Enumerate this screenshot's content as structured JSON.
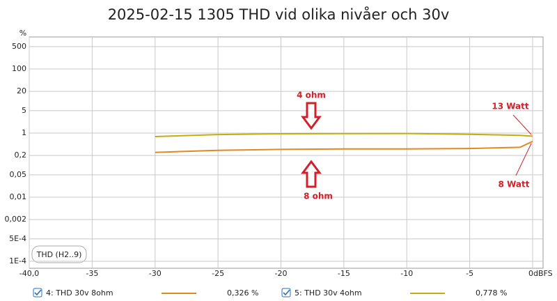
{
  "chart_data": {
    "type": "line",
    "title": "2025-02-15 1305 THD vid olika nivåer och 30v",
    "y_unit": "%",
    "measure_button": "THD (H2..9)",
    "x": [
      -30,
      -25,
      -20,
      -15,
      -10,
      -5,
      -1,
      0
    ],
    "series": [
      {
        "name": "4: THD 30v 8ohm",
        "color": "#e08a1e",
        "legend_value": "0,326 %",
        "values": [
          0.25,
          0.29,
          0.31,
          0.32,
          0.32,
          0.33,
          0.36,
          0.55
        ]
      },
      {
        "name": "5: THD 30v 4ohm",
        "color": "#c3ac10",
        "legend_value": "0,778 %",
        "values": [
          0.78,
          0.9,
          0.95,
          0.96,
          0.97,
          0.92,
          0.85,
          0.8
        ]
      }
    ],
    "xlim": [
      -40,
      0
    ],
    "xticks": [
      {
        "value": -40,
        "label": "-40,0"
      },
      -35,
      -30,
      -25,
      -20,
      -15,
      -10,
      -5,
      {
        "value": 0,
        "label": "0dBFS"
      }
    ],
    "ylim": [
      0.0001,
      1000
    ],
    "log_y": true,
    "yticks": [
      500,
      100,
      20,
      5,
      1,
      {
        "value": 0.2,
        "label": "0,2"
      },
      {
        "value": 0.05,
        "label": "0,05"
      },
      {
        "value": 0.01,
        "label": "0,01"
      },
      {
        "value": 0.002,
        "label": "0,002"
      },
      {
        "value": 0.0005,
        "label": "5E-4"
      },
      {
        "value": 0.0001,
        "label": "1E-4"
      }
    ],
    "grid": true,
    "annotations": [
      "4 ohm",
      "8 ohm",
      "13 Watt",
      "8 Watt"
    ]
  }
}
